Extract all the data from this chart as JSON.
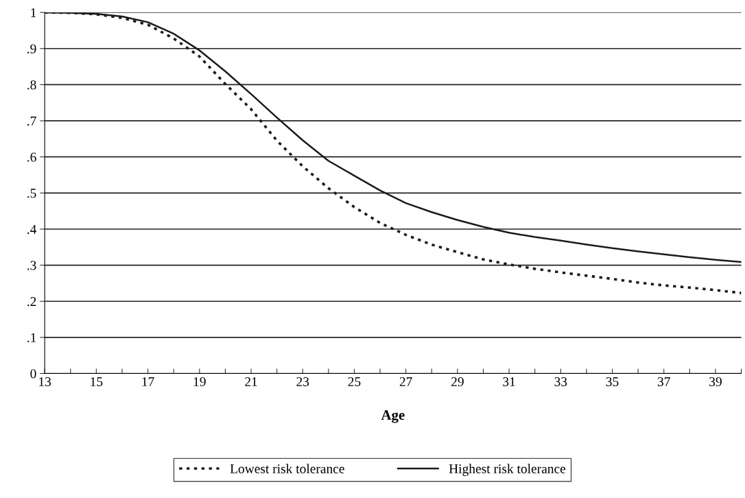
{
  "chart_data": {
    "type": "line",
    "xlabel": "Age",
    "x": [
      13,
      14,
      15,
      16,
      17,
      18,
      19,
      20,
      21,
      22,
      23,
      24,
      25,
      26,
      27,
      28,
      29,
      30,
      31,
      32,
      33,
      34,
      35,
      36,
      37,
      38,
      39,
      40
    ],
    "xlim": [
      13,
      40
    ],
    "xticks": [
      13,
      {
        "value": 14,
        "label": null
      },
      15,
      {
        "value": 16,
        "label": null
      },
      17,
      {
        "value": 18,
        "label": null
      },
      19,
      {
        "value": 20,
        "label": null
      },
      21,
      {
        "value": 22,
        "label": null
      },
      23,
      {
        "value": 24,
        "label": null
      },
      25,
      {
        "value": 26,
        "label": null
      },
      27,
      {
        "value": 28,
        "label": null
      },
      29,
      {
        "value": 30,
        "label": null
      },
      31,
      {
        "value": 32,
        "label": null
      },
      33,
      {
        "value": 34,
        "label": null
      },
      35,
      {
        "value": 36,
        "label": null
      },
      37,
      {
        "value": 38,
        "label": null
      },
      39,
      {
        "value": 40,
        "label": null
      }
    ],
    "ylim": [
      0,
      1
    ],
    "yticks": [
      0,
      {
        "value": 0.1,
        "label": ".1"
      },
      {
        "value": 0.2,
        "label": ".2"
      },
      {
        "value": 0.3,
        "label": ".3"
      },
      {
        "value": 0.4,
        "label": ".4"
      },
      {
        "value": 0.5,
        "label": ".5"
      },
      {
        "value": 0.6,
        "label": ".6"
      },
      {
        "value": 0.7,
        "label": ".7"
      },
      {
        "value": 0.8,
        "label": ".8"
      },
      {
        "value": 0.9,
        "label": ".9"
      },
      1
    ],
    "grid": "y",
    "legend": "bottom",
    "marker": "none",
    "series": [
      {
        "name": "Lowest risk tolerance",
        "color": "#1a1a1a",
        "line_style": "dotted",
        "values": [
          1.0,
          0.999,
          0.995,
          0.985,
          0.966,
          0.928,
          0.878,
          0.802,
          0.732,
          0.645,
          0.574,
          0.513,
          0.461,
          0.417,
          0.384,
          0.357,
          0.336,
          0.316,
          0.302,
          0.29,
          0.28,
          0.271,
          0.262,
          0.252,
          0.244,
          0.238,
          0.231,
          0.223
        ]
      },
      {
        "name": "Highest risk tolerance",
        "color": "#1a1a1a",
        "line_style": "solid",
        "values": [
          1.0,
          0.999,
          0.996,
          0.989,
          0.973,
          0.941,
          0.895,
          0.837,
          0.774,
          0.709,
          0.646,
          0.589,
          0.548,
          0.507,
          0.472,
          0.447,
          0.425,
          0.406,
          0.39,
          0.378,
          0.368,
          0.357,
          0.347,
          0.338,
          0.33,
          0.322,
          0.315,
          0.309
        ]
      }
    ]
  }
}
